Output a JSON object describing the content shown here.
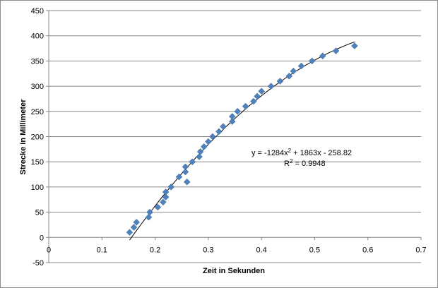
{
  "chart_data": {
    "type": "scatter",
    "xlabel": "Zeit in Sekunden",
    "ylabel": "Strecke in Millimeter",
    "xlim": [
      0,
      0.7
    ],
    "ylim": [
      -50,
      450
    ],
    "xticks": [
      "0",
      "0.1",
      "0.2",
      "0.3",
      "0.4",
      "0.5",
      "0.6",
      "0.7"
    ],
    "yticks": [
      "450",
      "400",
      "350",
      "300",
      "250",
      "200",
      "150",
      "100",
      "50",
      "0",
      "-50"
    ],
    "grid": "horizontal",
    "marker_color": "#4f81bd",
    "trendline": {
      "type": "polynomial",
      "coefficients": [
        -1284,
        1863,
        -258.82
      ],
      "x_range": [
        0.152,
        0.575
      ],
      "color": "#000000"
    },
    "equation_label": {
      "prefix": "y = -1284x",
      "sup1": "2",
      "rest": " + 1863x - 258.82"
    },
    "r2_label": {
      "prefix": "R",
      "sup": "2",
      "rest": " = 0.9948"
    },
    "points": [
      {
        "x": 0.152,
        "y": 10
      },
      {
        "x": 0.16,
        "y": 20
      },
      {
        "x": 0.165,
        "y": 30
      },
      {
        "x": 0.188,
        "y": 40
      },
      {
        "x": 0.19,
        "y": 50
      },
      {
        "x": 0.205,
        "y": 60
      },
      {
        "x": 0.215,
        "y": 70
      },
      {
        "x": 0.22,
        "y": 80
      },
      {
        "x": 0.22,
        "y": 90
      },
      {
        "x": 0.23,
        "y": 100
      },
      {
        "x": 0.26,
        "y": 110
      },
      {
        "x": 0.245,
        "y": 120
      },
      {
        "x": 0.257,
        "y": 130
      },
      {
        "x": 0.257,
        "y": 140
      },
      {
        "x": 0.27,
        "y": 150
      },
      {
        "x": 0.283,
        "y": 160
      },
      {
        "x": 0.285,
        "y": 170
      },
      {
        "x": 0.292,
        "y": 180
      },
      {
        "x": 0.3,
        "y": 190
      },
      {
        "x": 0.308,
        "y": 200
      },
      {
        "x": 0.32,
        "y": 210
      },
      {
        "x": 0.328,
        "y": 220
      },
      {
        "x": 0.345,
        "y": 230
      },
      {
        "x": 0.345,
        "y": 240
      },
      {
        "x": 0.355,
        "y": 250
      },
      {
        "x": 0.37,
        "y": 260
      },
      {
        "x": 0.385,
        "y": 270
      },
      {
        "x": 0.392,
        "y": 280
      },
      {
        "x": 0.4,
        "y": 290
      },
      {
        "x": 0.418,
        "y": 300
      },
      {
        "x": 0.435,
        "y": 310
      },
      {
        "x": 0.452,
        "y": 320
      },
      {
        "x": 0.46,
        "y": 330
      },
      {
        "x": 0.475,
        "y": 340
      },
      {
        "x": 0.495,
        "y": 350
      },
      {
        "x": 0.515,
        "y": 360
      },
      {
        "x": 0.54,
        "y": 370
      },
      {
        "x": 0.575,
        "y": 380
      }
    ]
  }
}
